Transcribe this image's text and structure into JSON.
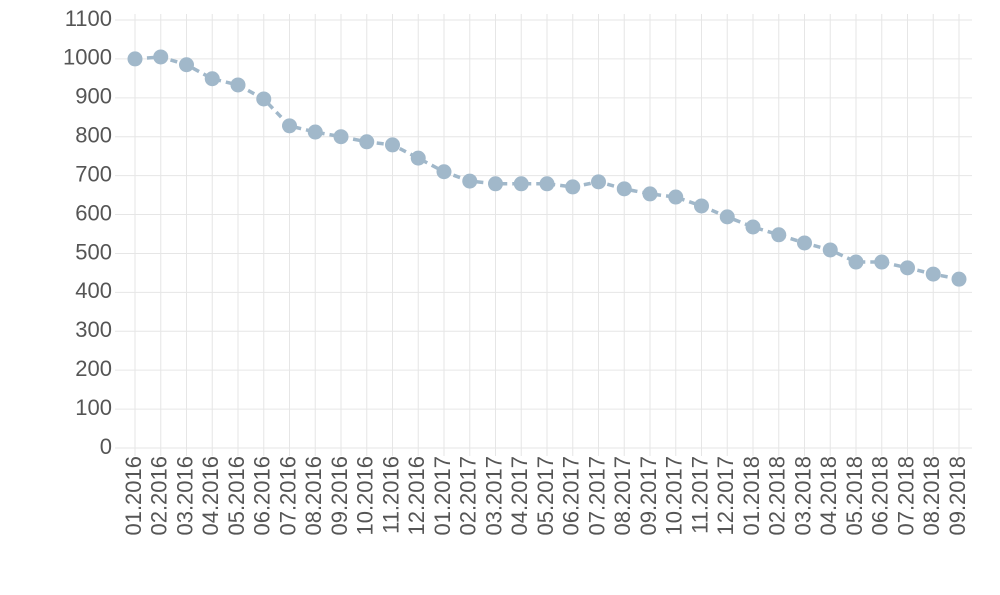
{
  "chart_data": {
    "type": "line",
    "categories": [
      "01.2016",
      "02.2016",
      "03.2016",
      "04.2016",
      "05.2016",
      "06.2016",
      "07.2016",
      "08.2016",
      "09.2016",
      "10.2016",
      "11.2016",
      "12.2016",
      "01.2017",
      "02.2017",
      "03.2017",
      "04.2017",
      "05.2017",
      "06.2017",
      "07.2017",
      "08.2017",
      "09.2017",
      "10.2017",
      "11.2017",
      "12.2017",
      "01.2018",
      "02.2018",
      "03.2018",
      "04.2018",
      "05.2018",
      "06.2018",
      "07.2018",
      "08.2018",
      "09.2018"
    ],
    "values": [
      1000,
      1005,
      985,
      949,
      933,
      897,
      828,
      812,
      800,
      787,
      779,
      745,
      710,
      686,
      679,
      679,
      679,
      671,
      684,
      666,
      653,
      645,
      622,
      594,
      568,
      548,
      527,
      509,
      478,
      478,
      463,
      447,
      434
    ],
    "color": "#a1b8ca",
    "ylim": [
      0,
      1100
    ],
    "yticks": [
      0,
      100,
      200,
      300,
      400,
      500,
      600,
      700,
      800,
      900,
      1000,
      1100
    ],
    "grid": true
  }
}
